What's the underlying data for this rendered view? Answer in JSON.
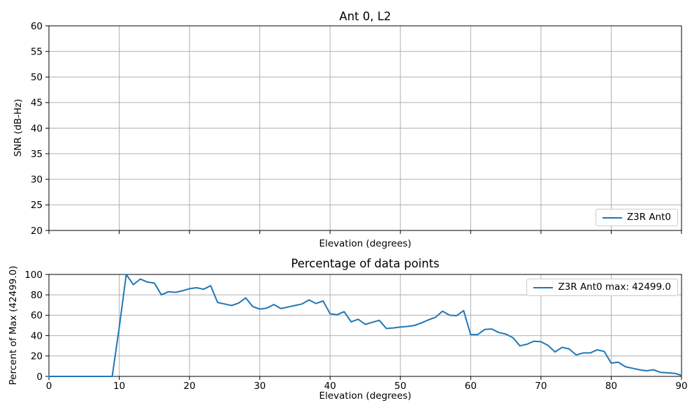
{
  "figure": {
    "background": "#ffffff",
    "accent_color": "#1f77b4",
    "grid_color": "#b0b0b0",
    "spine_color": "#000000",
    "text_color": "#000000"
  },
  "chart_data": [
    {
      "id": "snr",
      "type": "line",
      "title": "Ant 0, L2",
      "xlabel": "Elevation (degrees)",
      "ylabel": "SNR (dB-Hz)",
      "xlim": [
        0,
        90
      ],
      "ylim": [
        20,
        60
      ],
      "xticks": [
        0,
        10,
        20,
        30,
        40,
        50,
        60,
        70,
        80,
        90
      ],
      "xtick_labels_visible": false,
      "yticks": [
        20,
        25,
        30,
        35,
        40,
        45,
        50,
        55,
        60
      ],
      "grid": true,
      "legend": {
        "position": "lower right",
        "entries": [
          {
            "label": "Z3R Ant0",
            "color": "#1f77b4"
          }
        ]
      },
      "series": [
        {
          "name": "Z3R Ant0",
          "color": "#1f77b4",
          "x": [],
          "y": []
        }
      ]
    },
    {
      "id": "percentage",
      "type": "line",
      "title": "Percentage of data points",
      "xlabel": "Elevation (degrees)",
      "ylabel": "Percent of Max (42499.0)",
      "xlim": [
        0,
        90
      ],
      "ylim": [
        0,
        100
      ],
      "xticks": [
        0,
        10,
        20,
        30,
        40,
        50,
        60,
        70,
        80,
        90
      ],
      "xtick_labels_visible": true,
      "yticks": [
        0,
        20,
        40,
        60,
        80,
        100
      ],
      "grid": true,
      "legend": {
        "position": "upper right",
        "entries": [
          {
            "label": "Z3R Ant0 max: 42499.0",
            "color": "#1f77b4"
          }
        ]
      },
      "series": [
        {
          "name": "Z3R Ant0",
          "color": "#1f77b4",
          "max": 42499.0,
          "x": [
            0,
            1,
            2,
            3,
            4,
            5,
            6,
            7,
            8,
            9,
            10,
            11,
            12,
            13,
            14,
            15,
            16,
            17,
            18,
            19,
            20,
            21,
            22,
            23,
            24,
            25,
            26,
            27,
            28,
            29,
            30,
            31,
            32,
            33,
            34,
            35,
            36,
            37,
            38,
            39,
            40,
            41,
            42,
            43,
            44,
            45,
            46,
            47,
            48,
            49,
            50,
            51,
            52,
            53,
            54,
            55,
            56,
            57,
            58,
            59,
            60,
            61,
            62,
            63,
            64,
            65,
            66,
            67,
            68,
            69,
            70,
            71,
            72,
            73,
            74,
            75,
            76,
            77,
            78,
            79,
            80,
            81,
            82,
            83,
            84,
            85,
            86,
            87,
            88,
            89,
            90
          ],
          "y": [
            0,
            0,
            0,
            0,
            0,
            0,
            0,
            0,
            0,
            0,
            48,
            100,
            90,
            95.5,
            92.5,
            91.5,
            80,
            83,
            82.5,
            84,
            86,
            87,
            85.5,
            89,
            72.5,
            71,
            69.5,
            72,
            77,
            68.5,
            66,
            67,
            70.5,
            66.5,
            68,
            69.5,
            71,
            75,
            71.5,
            74,
            61.5,
            60.5,
            63.5,
            53.5,
            56,
            51,
            53,
            55,
            47,
            47.5,
            48.5,
            49,
            50,
            52.5,
            55.5,
            58,
            64,
            60,
            59.5,
            64.5,
            41,
            41,
            46,
            46.5,
            43,
            41.5,
            38,
            30,
            31.5,
            34.5,
            34,
            30.5,
            24,
            28.5,
            27,
            21,
            23,
            23,
            26,
            24.5,
            13,
            14,
            9.5,
            8,
            6.5,
            5.5,
            6.5,
            4,
            3.5,
            3,
            1
          ]
        }
      ]
    }
  ]
}
